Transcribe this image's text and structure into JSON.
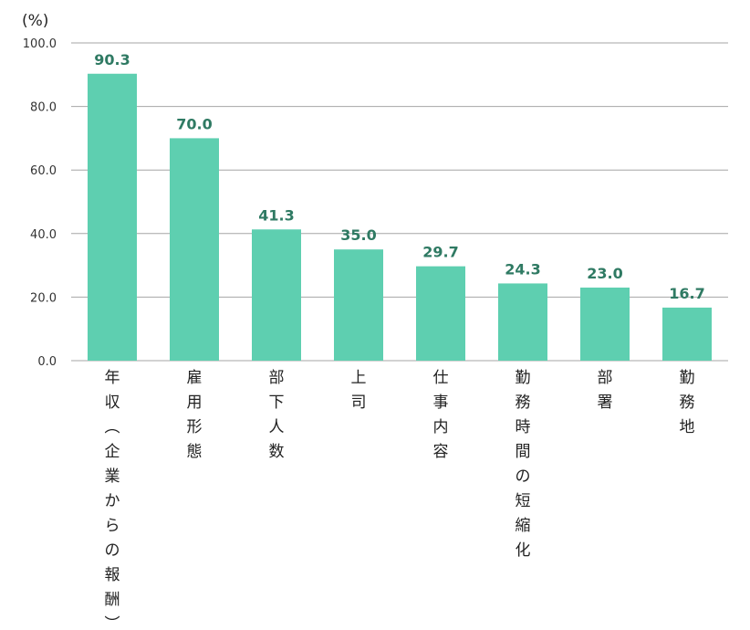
{
  "chart_data": {
    "type": "bar",
    "unit_label": "(%)",
    "categories": [
      "年収（企業からの報酬）",
      "雇用形態",
      "部下人数",
      "上司",
      "仕事内容",
      "勤務時間の短縮化",
      "部署",
      "勤務地"
    ],
    "values": [
      90.3,
      70.0,
      41.3,
      35.0,
      29.7,
      24.3,
      23.0,
      16.7
    ],
    "data_labels": [
      "90.3",
      "70.0",
      "41.3",
      "35.0",
      "29.7",
      "24.3",
      "23.0",
      "16.7"
    ],
    "y_ticks": [
      0,
      20,
      40,
      60,
      80,
      100
    ],
    "y_tick_labels": [
      "0.0",
      "20.0",
      "40.0",
      "60.0",
      "80.0",
      "100.0"
    ],
    "ylim": [
      0,
      100
    ],
    "grid": true,
    "bar_color": "#5ecfb0",
    "label_color": "#2f7a63",
    "grid_color": "#a6a6a6"
  }
}
